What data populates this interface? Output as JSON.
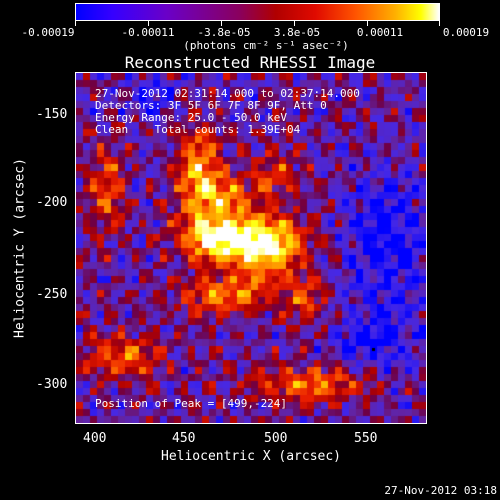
{
  "colorbar": {
    "ticks": [
      "-0.00019",
      "-0.00011",
      "-3.8e-05",
      "3.8e-05",
      "0.00011",
      "0.00019"
    ],
    "units": "(photons cm⁻² s⁻¹ asec⁻²)"
  },
  "plot": {
    "title": "Reconstructed RHESSI Image",
    "annotations": {
      "time_range": "27-Nov-2012 02:31:14.000 to 02:37:14.000",
      "detectors": "Detectors: 3F 5F 6F 7F 8F 9F, Att 0",
      "energy": "Energy Range: 25.0 - 50.0 keV",
      "clean": "Clean    Total counts: 1.39E+04",
      "peak": "Position of Peak = [499,-224]"
    },
    "x_ticks": [
      "400",
      "450",
      "500",
      "550"
    ],
    "y_ticks": [
      "-150",
      "-200",
      "-250",
      "-300"
    ],
    "xlabel": "Heliocentric X (arcsec)",
    "ylabel": "Heliocentric Y (arcsec)"
  },
  "footer": {
    "timestamp": "27-Nov-2012 03:18"
  }
}
